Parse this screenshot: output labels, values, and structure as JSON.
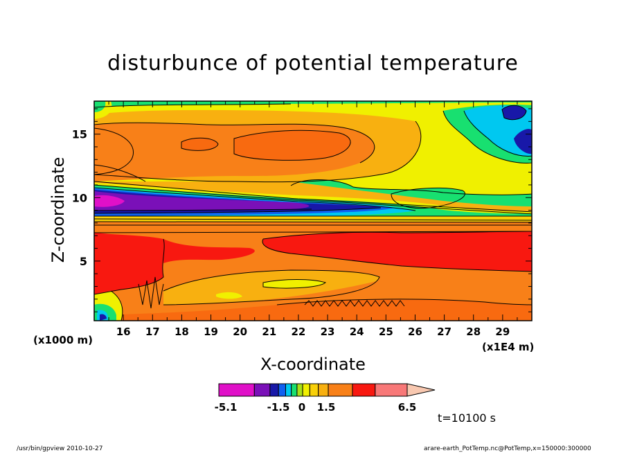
{
  "chart_data": {
    "type": "heatmap",
    "title": "disturbunce of potential temperature",
    "xlabel": "X-coordinate",
    "ylabel": "Z-coordinate",
    "x_unit_left": "(x1000 m)",
    "x_unit_right": "(x1E4 m)",
    "x_ticks": [
      "16",
      "17",
      "18",
      "19",
      "20",
      "21",
      "22",
      "23",
      "24",
      "25",
      "26",
      "27",
      "28",
      "29"
    ],
    "y_ticks": [
      "5",
      "10",
      "15"
    ],
    "xlim": [
      15.0,
      30.0
    ],
    "ylim": [
      0.3,
      17.6
    ],
    "colorbar": {
      "labels": [
        "-5.1",
        "-1.5",
        "0",
        "1.5",
        "6.5"
      ],
      "colors": [
        "#e010c8",
        "#7a10b8",
        "#1818a8",
        "#1060f0",
        "#00c8f0",
        "#18e070",
        "#a8e018",
        "#f0f000",
        "#f8d008",
        "#f8b010",
        "#f88018",
        "#f81810",
        "#f87878",
        "#f8c8b0"
      ]
    },
    "regions": [
      {
        "level": "3",
        "color": "#f88018",
        "desc": "upper layer band",
        "x": [
          15.0,
          26.5
        ],
        "y": [
          11.5,
          17.0
        ]
      },
      {
        "level": "1.5-2",
        "color": "#f0f000",
        "desc": "upper right background",
        "x": [
          21.0,
          30.0
        ],
        "y": [
          10.0,
          17.6
        ]
      },
      {
        "level": "-0.5",
        "color": "#18e070",
        "desc": "green patches",
        "x": [
          22.0,
          30.0
        ],
        "y": [
          9.3,
          11.0
        ]
      },
      {
        "level": "-2",
        "color": "#00c8f0",
        "desc": "cyan patch",
        "x": [
          27.3,
          30.0
        ],
        "y": [
          12.5,
          17.0
        ]
      },
      {
        "level": "-4",
        "color": "#1818a8",
        "desc": "dark blue patch",
        "x": [
          28.4,
          30.0
        ],
        "y": [
          15.5,
          17.4
        ]
      },
      {
        "level": "-5",
        "color": "#7a10b8",
        "desc": "cold band",
        "x": [
          15.0,
          23.5
        ],
        "y": [
          8.5,
          10.6
        ]
      },
      {
        "level": "-5.1",
        "color": "#e010c8",
        "desc": "minimum core",
        "x": [
          15.0,
          16.2
        ],
        "y": [
          9.0,
          9.7
        ]
      },
      {
        "level": "5",
        "color": "#f81810",
        "desc": "warm band",
        "x": [
          15.0,
          30.0
        ],
        "y": [
          4.2,
          7.6
        ]
      },
      {
        "level": "2.5",
        "color": "#f8b010",
        "desc": "lower patch",
        "x": [
          18.8,
          25.2
        ],
        "y": [
          1.5,
          3.5
        ]
      }
    ],
    "time_label": "t=10100 s",
    "footer_left": "/usr/bin/gpview   2010-10-27",
    "footer_right": "arare-earth_PotTemp.nc@PotTemp,x=150000:300000"
  }
}
